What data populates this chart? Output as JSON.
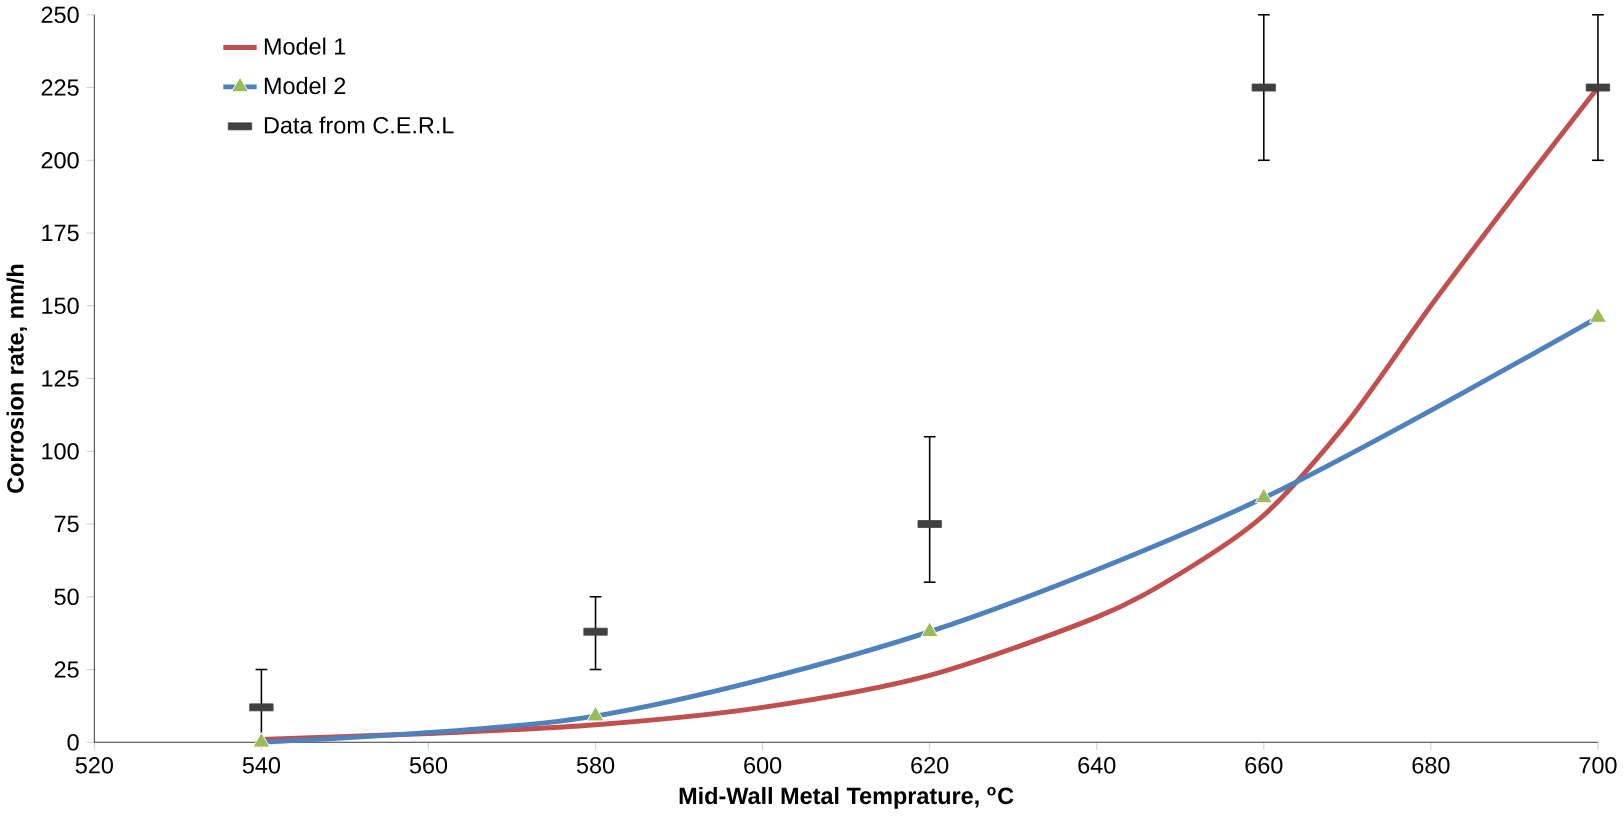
{
  "chart_data": {
    "type": "line",
    "xlabel": "Mid-Wall Metal Temprature, $^{o}$C",
    "ylabel": "Corrosion rate, nm/h",
    "xlim": [
      520,
      700
    ],
    "xticks": [
      520,
      540,
      560,
      580,
      600,
      620,
      640,
      660,
      680,
      700
    ],
    "ylim": [
      0,
      250
    ],
    "yticks": [
      0,
      25,
      50,
      75,
      100,
      125,
      150,
      175,
      200,
      225,
      250
    ],
    "legend": "top left",
    "grid": false,
    "series": [
      {
        "name": "Model 1",
        "color": "#c0504d",
        "marker": "none",
        "x": [
          540,
          560,
          580,
          600,
          620,
          640,
          650,
          660,
          670,
          680,
          690,
          700
        ],
        "values": [
          1,
          3,
          6,
          12,
          23,
          43,
          58,
          78,
          110,
          150,
          188,
          225
        ]
      },
      {
        "name": "Model 2",
        "color": "#4f81bd",
        "marker": "triangle",
        "x": [
          540,
          580,
          620,
          660,
          700
        ],
        "values": [
          0,
          9,
          38,
          84,
          146
        ]
      },
      {
        "name": "Data from C.E.R.L",
        "type": "scatter",
        "color": "#404040",
        "marker": "square",
        "x": [
          540,
          580,
          620,
          660,
          700
        ],
        "values": [
          12,
          38,
          75,
          225,
          225
        ],
        "errors": [
          [
            0,
            25
          ],
          [
            25,
            50
          ],
          [
            55,
            105
          ],
          [
            200,
            250
          ],
          [
            200,
            250
          ]
        ]
      }
    ]
  }
}
